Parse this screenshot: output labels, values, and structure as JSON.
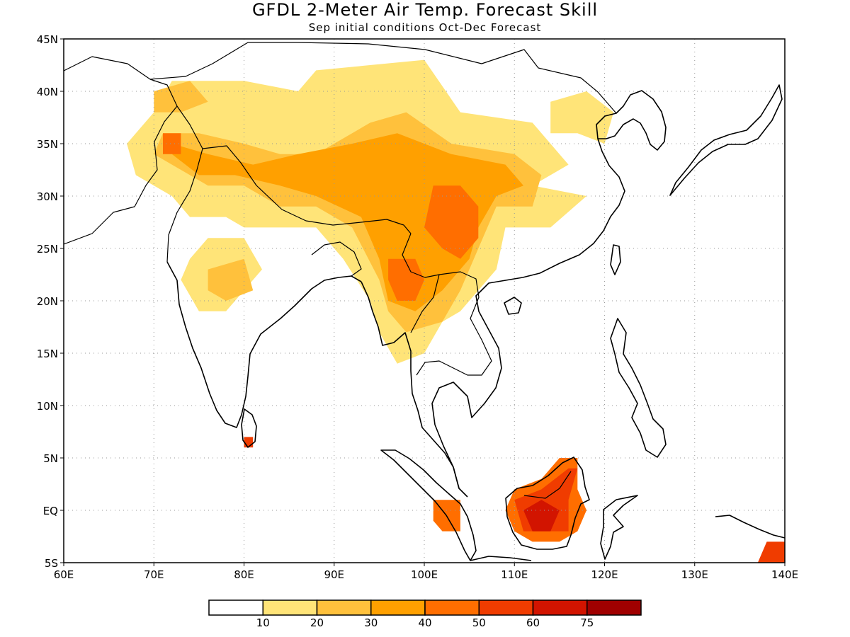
{
  "title": "GFDL 2-Meter Air Temp. Forecast Skill",
  "subtitle": "Sep initial conditions  Oct-Dec Forecast",
  "map": {
    "lon_range": [
      60,
      140
    ],
    "lat_range": [
      -5,
      45
    ],
    "x_ticks": [
      "60E",
      "70E",
      "80E",
      "90E",
      "100E",
      "110E",
      "120E",
      "130E",
      "140E"
    ],
    "y_ticks": [
      "45N",
      "40N",
      "35N",
      "30N",
      "25N",
      "20N",
      "15N",
      "10N",
      "5N",
      "EQ",
      "5S"
    ]
  },
  "colorbar": {
    "colors": [
      "#ffffff",
      "#ffe478",
      "#ffc13c",
      "#ffa000",
      "#ff6e00",
      "#f03c00",
      "#d21400",
      "#a00000"
    ],
    "labels": [
      "10",
      "20",
      "30",
      "40",
      "50",
      "60",
      "75"
    ]
  },
  "skill_patches": [
    {
      "level": 1,
      "color": "#ffe478",
      "points": [
        [
          88,
          42
        ],
        [
          100,
          43
        ],
        [
          104,
          38
        ],
        [
          112,
          37
        ],
        [
          116,
          33
        ],
        [
          112,
          31
        ],
        [
          118,
          30
        ],
        [
          114,
          27
        ],
        [
          109,
          27
        ],
        [
          108,
          23
        ],
        [
          104,
          19
        ],
        [
          102,
          18
        ],
        [
          100,
          15
        ],
        [
          97,
          14
        ],
        [
          95,
          17
        ],
        [
          94,
          20
        ],
        [
          91,
          24
        ],
        [
          88,
          27
        ],
        [
          84,
          27
        ],
        [
          80,
          27
        ],
        [
          78,
          28
        ],
        [
          74,
          28
        ],
        [
          72,
          30
        ],
        [
          68,
          32
        ],
        [
          67,
          35
        ],
        [
          70,
          38
        ],
        [
          72,
          41
        ],
        [
          80,
          41
        ],
        [
          86,
          40
        ]
      ]
    },
    {
      "level": 1,
      "color": "#ffe478",
      "points": [
        [
          76,
          26
        ],
        [
          80,
          26
        ],
        [
          82,
          23
        ],
        [
          80,
          21
        ],
        [
          78,
          19
        ],
        [
          75,
          19
        ],
        [
          73,
          22
        ],
        [
          74,
          24
        ]
      ]
    },
    {
      "level": 1,
      "color": "#ffe478",
      "points": [
        [
          114,
          39
        ],
        [
          118,
          40
        ],
        [
          121,
          38
        ],
        [
          120,
          35
        ],
        [
          117,
          36
        ],
        [
          114,
          36
        ]
      ]
    },
    {
      "level": 2,
      "color": "#ffc13c",
      "points": [
        [
          88,
          34
        ],
        [
          94,
          37
        ],
        [
          98,
          38
        ],
        [
          103,
          35
        ],
        [
          110,
          34
        ],
        [
          113,
          32
        ],
        [
          112,
          29
        ],
        [
          108,
          29
        ],
        [
          106,
          25
        ],
        [
          104,
          21
        ],
        [
          102,
          18
        ],
        [
          98,
          17
        ],
        [
          96,
          19
        ],
        [
          95,
          22
        ],
        [
          92,
          27
        ],
        [
          88,
          29
        ],
        [
          84,
          29
        ],
        [
          80,
          31
        ],
        [
          76,
          31
        ],
        [
          72,
          33
        ],
        [
          70,
          34
        ],
        [
          71,
          36
        ],
        [
          75,
          36
        ],
        [
          80,
          35
        ],
        [
          84,
          34
        ]
      ]
    },
    {
      "level": 2,
      "color": "#ffc13c",
      "points": [
        [
          70,
          40
        ],
        [
          74,
          41
        ],
        [
          76,
          39
        ],
        [
          73,
          38
        ],
        [
          70,
          38
        ]
      ]
    },
    {
      "level": 2,
      "color": "#ffc13c",
      "points": [
        [
          76,
          23
        ],
        [
          80,
          24
        ],
        [
          81,
          21
        ],
        [
          78,
          20
        ],
        [
          76,
          21
        ]
      ]
    },
    {
      "level": 3,
      "color": "#ffa000",
      "points": [
        [
          86,
          34
        ],
        [
          92,
          35
        ],
        [
          97,
          36
        ],
        [
          103,
          34
        ],
        [
          109,
          33
        ],
        [
          111,
          31
        ],
        [
          108,
          30
        ],
        [
          106,
          27
        ],
        [
          105,
          24
        ],
        [
          102,
          21
        ],
        [
          99,
          19
        ],
        [
          96,
          20
        ],
        [
          95,
          24
        ],
        [
          93,
          28
        ],
        [
          88,
          30
        ],
        [
          84,
          31
        ],
        [
          79,
          32
        ],
        [
          75,
          32
        ],
        [
          72,
          34
        ],
        [
          72,
          35
        ],
        [
          76,
          34
        ],
        [
          81,
          33
        ]
      ]
    },
    {
      "level": 4,
      "color": "#ff6e00",
      "points": [
        [
          101,
          31
        ],
        [
          104,
          31
        ],
        [
          106,
          29
        ],
        [
          106,
          26
        ],
        [
          104,
          24
        ],
        [
          102,
          25
        ],
        [
          100,
          27
        ]
      ]
    },
    {
      "level": 4,
      "color": "#ff6e00",
      "points": [
        [
          96,
          24
        ],
        [
          99,
          24
        ],
        [
          100,
          22
        ],
        [
          99,
          20
        ],
        [
          97,
          20
        ],
        [
          96,
          22
        ]
      ]
    },
    {
      "level": 4,
      "color": "#ff6e00",
      "points": [
        [
          71,
          36
        ],
        [
          73,
          36
        ],
        [
          73,
          34
        ],
        [
          71,
          34
        ]
      ]
    },
    {
      "level": 4,
      "color": "#ff6e00",
      "points": [
        [
          101,
          1
        ],
        [
          104,
          1
        ],
        [
          104,
          -2
        ],
        [
          102,
          -2
        ],
        [
          101,
          -1
        ]
      ]
    },
    {
      "level": 4,
      "color": "#ff6e00",
      "points": [
        [
          110,
          2
        ],
        [
          113,
          3
        ],
        [
          115,
          5
        ],
        [
          117,
          5
        ],
        [
          117,
          2
        ],
        [
          118,
          0
        ],
        [
          117,
          -2
        ],
        [
          115,
          -3
        ],
        [
          112,
          -3
        ],
        [
          110,
          -2
        ],
        [
          109,
          0
        ]
      ]
    },
    {
      "level": 5,
      "color": "#f03c00",
      "points": [
        [
          110,
          1
        ],
        [
          113,
          2
        ],
        [
          116,
          4
        ],
        [
          117,
          4
        ],
        [
          116,
          1
        ],
        [
          116,
          -2
        ],
        [
          113,
          -2
        ],
        [
          111,
          -2
        ]
      ]
    },
    {
      "level": 5,
      "color": "#f03c00",
      "points": [
        [
          138,
          -3
        ],
        [
          140,
          -3
        ],
        [
          140,
          -5
        ],
        [
          137,
          -5
        ]
      ]
    },
    {
      "level": 5,
      "color": "#f03c00",
      "points": [
        [
          80,
          7
        ],
        [
          81,
          7
        ],
        [
          81,
          6
        ],
        [
          80,
          6
        ]
      ]
    },
    {
      "level": 6,
      "color": "#d21400",
      "points": [
        [
          111,
          0
        ],
        [
          113,
          1
        ],
        [
          115,
          0
        ],
        [
          114,
          -2
        ],
        [
          112,
          -2
        ]
      ]
    }
  ]
}
